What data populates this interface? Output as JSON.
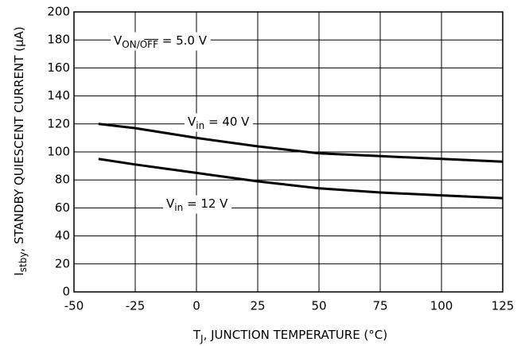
{
  "chart_data": {
    "type": "line",
    "x_label": {
      "main": "T",
      "sub": "J",
      "rest": ", JUNCTION TEMPERATURE (°C)"
    },
    "y_label": {
      "main": "I",
      "sub": "stby",
      "rest": ", STANDBY QUIESCENT CURRENT (μA)"
    },
    "annotation": {
      "main": "V",
      "sub": "ON/OFF",
      "rest": " = 5.0 V"
    },
    "x": [
      -40,
      -25,
      0,
      25,
      50,
      75,
      100,
      125
    ],
    "series": [
      {
        "label": {
          "main": "V",
          "sub": "in",
          "rest": " = 40 V"
        },
        "color": "#000000",
        "values": [
          120,
          117,
          110,
          104,
          99,
          97,
          95,
          93
        ]
      },
      {
        "label": {
          "main": "V",
          "sub": "in",
          "rest": " = 12 V"
        },
        "color": "#000000",
        "values": [
          95,
          91,
          85,
          79,
          74,
          71,
          69,
          67
        ]
      }
    ],
    "xlim": [
      -50,
      125
    ],
    "xticks": [
      -50,
      -25,
      0,
      25,
      50,
      75,
      100,
      125
    ],
    "ylim": [
      0,
      200
    ],
    "yticks": [
      0,
      20,
      40,
      60,
      80,
      100,
      120,
      140,
      160,
      180,
      200
    ],
    "grid": true
  }
}
